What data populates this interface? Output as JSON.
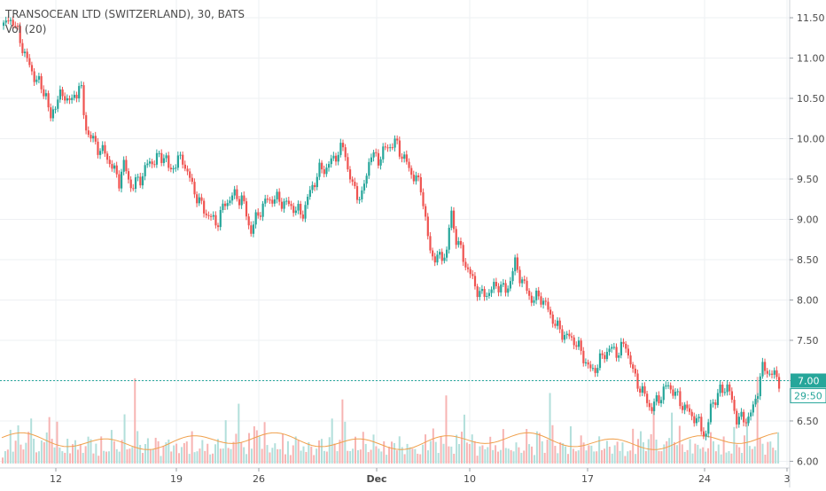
{
  "chart_data": {
    "type": "candlestick",
    "symbol_title": "TRANSOCEAN LTD (SWITZERLAND), 30, BATS",
    "indicator_label": "Vol (20)",
    "y_axis": {
      "ylim": [
        5.95,
        11.72
      ],
      "ticks": [
        "6.00",
        "6.50",
        "7.00",
        "7.50",
        "8.00",
        "8.50",
        "9.00",
        "9.50",
        "10.00",
        "10.50",
        "11.00",
        "11.50"
      ],
      "position": "right"
    },
    "x_axis": {
      "ticks": [
        "12",
        "19",
        "26",
        "Dec",
        "10",
        "17",
        "24",
        "3"
      ]
    },
    "last_price_label": "7.00",
    "countdown_label": "29:50",
    "colors": {
      "up": "#26a69a",
      "down": "#ef5350",
      "vol_up": "#b2dfdb",
      "vol_down": "#f7b4b3",
      "ma": "#f0a04b",
      "price_line": "#26a69a",
      "grid": "#eef0f3"
    },
    "grid": true,
    "price_path": [
      [
        0,
        11.4
      ],
      [
        1,
        11.5
      ],
      [
        2,
        11.2
      ],
      [
        3,
        10.9
      ],
      [
        4,
        10.7
      ],
      [
        5,
        10.55
      ],
      [
        5.5,
        10.2
      ],
      [
        6,
        10.45
      ],
      [
        7,
        10.55
      ],
      [
        8,
        10.45
      ],
      [
        9,
        10.7
      ],
      [
        9.5,
        10.2
      ],
      [
        10,
        10.05
      ],
      [
        11,
        9.9
      ],
      [
        12,
        9.8
      ],
      [
        13,
        9.6
      ],
      [
        13.5,
        9.45
      ],
      [
        14,
        9.7
      ],
      [
        15,
        9.4
      ],
      [
        16,
        9.5
      ],
      [
        17,
        9.7
      ],
      [
        18,
        9.75
      ],
      [
        19,
        9.8
      ],
      [
        19.5,
        9.55
      ],
      [
        20,
        9.7
      ],
      [
        21,
        9.75
      ],
      [
        22,
        9.45
      ],
      [
        23,
        9.2
      ],
      [
        24,
        9.05
      ],
      [
        25,
        8.95
      ],
      [
        26,
        9.2
      ],
      [
        27,
        9.3
      ],
      [
        28,
        9.25
      ],
      [
        29,
        8.85
      ],
      [
        30,
        9.1
      ],
      [
        31,
        9.25
      ],
      [
        32,
        9.25
      ],
      [
        33,
        9.2
      ],
      [
        34,
        9.15
      ],
      [
        35,
        9.05
      ],
      [
        36,
        9.35
      ],
      [
        37,
        9.6
      ],
      [
        38,
        9.65
      ],
      [
        39,
        9.8
      ],
      [
        40,
        9.9
      ],
      [
        40.5,
        9.55
      ],
      [
        41,
        9.4
      ],
      [
        42,
        9.25
      ],
      [
        43,
        9.8
      ],
      [
        44,
        9.75
      ],
      [
        45,
        9.9
      ],
      [
        46,
        9.95
      ],
      [
        47,
        9.75
      ],
      [
        48,
        9.55
      ],
      [
        49,
        9.4
      ],
      [
        50,
        8.6
      ],
      [
        51,
        8.5
      ],
      [
        52,
        8.6
      ],
      [
        52.5,
        9.1
      ],
      [
        53,
        8.8
      ],
      [
        54,
        8.5
      ],
      [
        55,
        8.25
      ],
      [
        56,
        8.05
      ],
      [
        57,
        8.1
      ],
      [
        58,
        8.2
      ],
      [
        59,
        8.1
      ],
      [
        60,
        8.45
      ],
      [
        61,
        8.2
      ],
      [
        62,
        8.0
      ],
      [
        63,
        8.05
      ],
      [
        64,
        7.85
      ],
      [
        65,
        7.65
      ],
      [
        66,
        7.55
      ],
      [
        67,
        7.5
      ],
      [
        68,
        7.3
      ],
      [
        69,
        7.1
      ],
      [
        70,
        7.25
      ],
      [
        71,
        7.4
      ],
      [
        72,
        7.35
      ],
      [
        73,
        7.45
      ],
      [
        74,
        7.05
      ],
      [
        75,
        6.85
      ],
      [
        76,
        6.65
      ],
      [
        77,
        6.8
      ],
      [
        78,
        6.95
      ],
      [
        79,
        6.8
      ],
      [
        80,
        6.65
      ],
      [
        81,
        6.55
      ],
      [
        82,
        6.4
      ],
      [
        82.5,
        6.3
      ],
      [
        83,
        6.7
      ],
      [
        84,
        6.85
      ],
      [
        85,
        6.95
      ],
      [
        85.5,
        6.7
      ],
      [
        86,
        6.55
      ],
      [
        87,
        6.5
      ],
      [
        88,
        6.65
      ],
      [
        89,
        7.15
      ],
      [
        90,
        7.1
      ],
      [
        91,
        7.0
      ]
    ],
    "volume": [
      [
        0.08,
        0.1,
        0.16,
        0.28,
        0.12,
        0.2,
        0.35,
        0.18,
        0.12,
        0.22,
        0.26,
        0.55,
        0.2,
        0.14,
        0.1,
        0.25,
        0.18,
        0.3,
        0.42,
        0.22,
        0.16,
        0.35,
        0.18,
        0.1,
        0.14,
        0.2,
        0.12,
        0.16,
        0.24,
        0.12,
        0.18,
        0.1,
        0.15,
        0.28,
        0.2,
        0.12,
        0.16,
        0.1,
        0.22,
        0.14
      ],
      [
        0.1,
        0.12,
        0.3,
        0.2,
        0.14,
        0.1,
        0.26,
        0.4,
        0.18,
        0.12,
        0.2,
        0.7,
        0.34,
        0.16,
        0.1,
        0.18,
        0.22,
        0.14,
        0.12,
        0.3,
        0.18,
        0.1,
        0.14,
        0.24,
        0.2,
        0.12,
        0.16,
        0.18,
        0.1,
        0.14,
        0.22,
        0.18,
        0.12,
        0.26,
        0.14,
        0.1,
        0.16,
        0.2,
        0.12,
        0.18
      ]
    ],
    "ma_level": 0.18
  }
}
